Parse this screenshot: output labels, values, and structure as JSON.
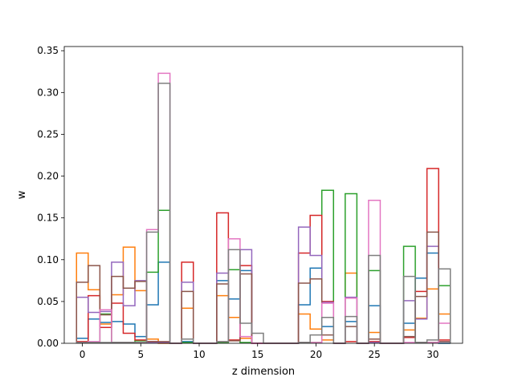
{
  "chart_data": {
    "type": "step-histogram",
    "xlabel": "z dimension",
    "ylabel": "w",
    "xlim": [
      -1.55,
      32.55
    ],
    "ylim": [
      0,
      0.355
    ],
    "xticks": [
      0,
      5,
      10,
      15,
      20,
      25,
      30
    ],
    "yticks": [
      0.0,
      0.05,
      0.1,
      0.15,
      0.2,
      0.25,
      0.3,
      0.35
    ],
    "ytick_labels": [
      "0.00",
      "0.05",
      "0.10",
      "0.15",
      "0.20",
      "0.25",
      "0.30",
      "0.35"
    ],
    "bin_width": 1,
    "x": [
      0,
      1,
      2,
      3,
      4,
      5,
      6,
      7,
      8,
      9,
      10,
      11,
      12,
      13,
      14,
      15,
      16,
      17,
      18,
      19,
      20,
      21,
      22,
      23,
      24,
      25,
      26,
      27,
      28,
      29,
      30,
      31
    ],
    "series": [
      {
        "color": "#1f77b4",
        "values": [
          0.006,
          0.029,
          0.025,
          0.026,
          0.023,
          0.008,
          0.046,
          0.097,
          0,
          0.002,
          0,
          0,
          0.075,
          0.053,
          0.087,
          0,
          0,
          0,
          0,
          0.046,
          0.09,
          0.02,
          0,
          0.026,
          0,
          0.045,
          0,
          0,
          0.024,
          0.078,
          0.108,
          0
        ]
      },
      {
        "color": "#ff7f0e",
        "values": [
          0.108,
          0.064,
          0.023,
          0.058,
          0.115,
          0.063,
          0.005,
          0,
          0,
          0.042,
          0,
          0,
          0.057,
          0.031,
          0.006,
          0,
          0,
          0,
          0,
          0.035,
          0.017,
          0.004,
          0,
          0.084,
          0,
          0.013,
          0,
          0,
          0.016,
          0.03,
          0.065,
          0.035
        ]
      },
      {
        "color": "#2ca02c",
        "values": [
          0.001,
          0.001,
          0.035,
          0.001,
          0.001,
          0.003,
          0.085,
          0.159,
          0,
          0.001,
          0,
          0,
          0.001,
          0.088,
          0.001,
          0,
          0,
          0,
          0,
          0.001,
          0.001,
          0.183,
          0,
          0.179,
          0,
          0.087,
          0,
          0,
          0.116,
          0.001,
          0.001,
          0.069
        ]
      },
      {
        "color": "#d62728",
        "values": [
          0.002,
          0.057,
          0.019,
          0.048,
          0.012,
          0.004,
          0.002,
          0.001,
          0,
          0.097,
          0,
          0,
          0.156,
          0.004,
          0.093,
          0,
          0,
          0,
          0,
          0.108,
          0.153,
          0.05,
          0,
          0.002,
          0,
          0.002,
          0,
          0,
          0.007,
          0.062,
          0.209,
          0.004
        ]
      },
      {
        "color": "#9467bd",
        "values": [
          0.055,
          0.037,
          0.038,
          0.097,
          0.045,
          0.075,
          0.001,
          0.001,
          0,
          0.073,
          0,
          0,
          0.084,
          0.112,
          0.112,
          0,
          0,
          0,
          0,
          0.139,
          0.105,
          0.049,
          0,
          0.055,
          0,
          0.001,
          0,
          0,
          0.051,
          0.029,
          0.116,
          0.002
        ]
      },
      {
        "color": "#8c564b",
        "values": [
          0.073,
          0.093,
          0.034,
          0.08,
          0.066,
          0.074,
          0.002,
          0.002,
          0,
          0.062,
          0,
          0,
          0.071,
          0.003,
          0.083,
          0,
          0,
          0,
          0,
          0.072,
          0.077,
          0.01,
          0,
          0.02,
          0,
          0.005,
          0,
          0,
          0.008,
          0.056,
          0.133,
          0.002
        ]
      },
      {
        "color": "#e377c2",
        "values": [
          0.001,
          0.002,
          0.04,
          0.001,
          0.001,
          0.001,
          0.136,
          0.323,
          0,
          0.005,
          0,
          0,
          0.002,
          0.125,
          0.008,
          0,
          0,
          0,
          0,
          0.001,
          0.001,
          0.048,
          0,
          0.054,
          0,
          0.171,
          0,
          0,
          0.001,
          0.001,
          0.001,
          0.024
        ]
      },
      {
        "color": "#7f7f7f",
        "values": [
          0.001,
          0.001,
          0.001,
          0.001,
          0.001,
          0.001,
          0.133,
          0.311,
          0,
          0.005,
          0,
          0,
          0.002,
          0.112,
          0.024,
          0.012,
          0,
          0,
          0,
          0.001,
          0.01,
          0.031,
          0,
          0.032,
          0,
          0.105,
          0,
          0,
          0.08,
          0.001,
          0.004,
          0.089
        ]
      }
    ]
  }
}
